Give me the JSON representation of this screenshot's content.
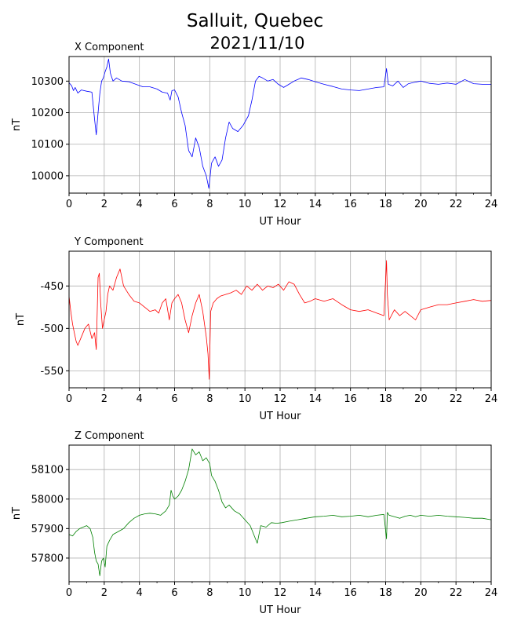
{
  "figure": {
    "title_line1": "Salluit, Quebec",
    "title_line2": "2021/11/10"
  },
  "chart_data": [
    {
      "type": "line",
      "title": "X Component",
      "xlabel": "UT Hour",
      "ylabel": "nT",
      "xlim": [
        0,
        24
      ],
      "ylim": [
        9945,
        10378
      ],
      "xticks": [
        0,
        2,
        4,
        6,
        8,
        10,
        12,
        14,
        16,
        18,
        20,
        22,
        24
      ],
      "yticks": [
        10000,
        10100,
        10200,
        10300
      ],
      "grid": true,
      "color": "#0000ff",
      "x": [
        0,
        0.15,
        0.25,
        0.35,
        0.5,
        0.7,
        1.0,
        1.3,
        1.45,
        1.55,
        1.65,
        1.75,
        1.85,
        1.95,
        2.05,
        2.15,
        2.25,
        2.35,
        2.5,
        2.7,
        3.0,
        3.4,
        3.8,
        4.2,
        4.6,
        5.0,
        5.3,
        5.6,
        5.75,
        5.85,
        6.0,
        6.2,
        6.4,
        6.6,
        6.8,
        7.0,
        7.2,
        7.4,
        7.6,
        7.8,
        7.95,
        8.1,
        8.3,
        8.5,
        8.7,
        8.9,
        9.1,
        9.3,
        9.6,
        9.9,
        10.2,
        10.4,
        10.6,
        10.8,
        11.0,
        11.3,
        11.6,
        11.9,
        12.2,
        12.5,
        12.8,
        13.2,
        13.6,
        14.0,
        14.5,
        15.0,
        15.5,
        16.0,
        16.5,
        17.0,
        17.5,
        17.9,
        18.05,
        18.15,
        18.4,
        18.7,
        19.0,
        19.3,
        19.6,
        20.0,
        20.5,
        21.0,
        21.5,
        22.0,
        22.5,
        23.0,
        23.5,
        24.0
      ],
      "y": [
        10295,
        10285,
        10270,
        10280,
        10262,
        10272,
        10268,
        10265,
        10180,
        10130,
        10200,
        10260,
        10300,
        10310,
        10330,
        10345,
        10370,
        10325,
        10300,
        10310,
        10300,
        10298,
        10290,
        10282,
        10282,
        10275,
        10265,
        10262,
        10240,
        10270,
        10272,
        10250,
        10200,
        10160,
        10080,
        10060,
        10120,
        10090,
        10030,
        10000,
        9960,
        10040,
        10060,
        10030,
        10050,
        10120,
        10170,
        10150,
        10140,
        10160,
        10190,
        10240,
        10300,
        10315,
        10310,
        10300,
        10305,
        10290,
        10280,
        10290,
        10300,
        10310,
        10305,
        10298,
        10290,
        10283,
        10275,
        10272,
        10270,
        10275,
        10280,
        10282,
        10340,
        10290,
        10285,
        10300,
        10280,
        10292,
        10296,
        10300,
        10293,
        10290,
        10294,
        10290,
        10305,
        10292,
        10290,
        10290
      ]
    },
    {
      "type": "line",
      "title": "Y Component",
      "xlabel": "UT Hour",
      "ylabel": "nT",
      "xlim": [
        0,
        24
      ],
      "ylim": [
        -570,
        -409
      ],
      "xticks": [
        0,
        2,
        4,
        6,
        8,
        10,
        12,
        14,
        16,
        18,
        20,
        22,
        24
      ],
      "yticks": [
        -550,
        -500,
        -450
      ],
      "grid": true,
      "color": "#ff0000",
      "x": [
        0,
        0.1,
        0.2,
        0.3,
        0.4,
        0.5,
        0.7,
        0.9,
        1.1,
        1.3,
        1.45,
        1.55,
        1.65,
        1.72,
        1.8,
        1.9,
        2.0,
        2.1,
        2.2,
        2.3,
        2.5,
        2.7,
        2.9,
        3.1,
        3.4,
        3.7,
        4.0,
        4.3,
        4.6,
        4.9,
        5.1,
        5.3,
        5.5,
        5.7,
        5.85,
        6.0,
        6.2,
        6.4,
        6.6,
        6.8,
        7.0,
        7.2,
        7.4,
        7.6,
        7.8,
        7.9,
        7.97,
        8.05,
        8.2,
        8.4,
        8.6,
        8.9,
        9.2,
        9.5,
        9.8,
        10.1,
        10.4,
        10.7,
        11.0,
        11.3,
        11.6,
        11.9,
        12.2,
        12.5,
        12.8,
        13.1,
        13.4,
        13.7,
        14.0,
        14.5,
        15.0,
        15.5,
        16.0,
        16.5,
        17.0,
        17.5,
        17.9,
        18.05,
        18.1,
        18.2,
        18.5,
        18.8,
        19.1,
        19.4,
        19.7,
        20.0,
        20.5,
        21.0,
        21.5,
        22.0,
        22.5,
        23.0,
        23.5,
        24.0
      ],
      "y": [
        -462,
        -480,
        -495,
        -505,
        -515,
        -520,
        -510,
        -500,
        -495,
        -512,
        -505,
        -525,
        -440,
        -435,
        -470,
        -500,
        -490,
        -480,
        -460,
        -450,
        -455,
        -440,
        -430,
        -450,
        -460,
        -468,
        -470,
        -475,
        -480,
        -478,
        -482,
        -470,
        -465,
        -490,
        -470,
        -465,
        -460,
        -470,
        -490,
        -505,
        -485,
        -470,
        -460,
        -480,
        -510,
        -530,
        -560,
        -480,
        -470,
        -465,
        -462,
        -460,
        -458,
        -455,
        -460,
        -450,
        -455,
        -448,
        -455,
        -450,
        -452,
        -448,
        -455,
        -445,
        -448,
        -460,
        -470,
        -468,
        -465,
        -468,
        -465,
        -472,
        -478,
        -480,
        -478,
        -482,
        -485,
        -420,
        -460,
        -490,
        -478,
        -485,
        -480,
        -485,
        -490,
        -478,
        -475,
        -472,
        -472,
        -470,
        -468,
        -466,
        -468,
        -467
      ]
    },
    {
      "type": "line",
      "title": "Z Component",
      "xlabel": "UT Hour",
      "ylabel": "nT",
      "xlim": [
        0,
        24
      ],
      "ylim": [
        57720,
        58183
      ],
      "xticks": [
        0,
        2,
        4,
        6,
        8,
        10,
        12,
        14,
        16,
        18,
        20,
        22,
        24
      ],
      "yticks": [
        57800,
        57900,
        58000,
        58100
      ],
      "grid": true,
      "color": "#008000",
      "x": [
        0,
        0.2,
        0.4,
        0.6,
        0.8,
        1.0,
        1.2,
        1.35,
        1.45,
        1.55,
        1.65,
        1.75,
        1.85,
        1.95,
        2.05,
        2.15,
        2.3,
        2.5,
        2.8,
        3.1,
        3.4,
        3.7,
        4.0,
        4.3,
        4.6,
        4.9,
        5.2,
        5.5,
        5.7,
        5.8,
        5.9,
        6.0,
        6.2,
        6.4,
        6.6,
        6.8,
        7.0,
        7.2,
        7.4,
        7.6,
        7.8,
        8.0,
        8.1,
        8.3,
        8.5,
        8.7,
        8.9,
        9.1,
        9.4,
        9.7,
        10.0,
        10.3,
        10.5,
        10.7,
        10.9,
        11.2,
        11.5,
        11.8,
        12.1,
        12.5,
        13.0,
        13.5,
        14.0,
        14.5,
        15.0,
        15.5,
        16.0,
        16.5,
        17.0,
        17.5,
        17.9,
        18.05,
        18.1,
        18.2,
        18.5,
        18.8,
        19.1,
        19.4,
        19.7,
        20.0,
        20.5,
        21.0,
        21.5,
        22.0,
        22.5,
        23.0,
        23.5,
        24.0
      ],
      "y": [
        57880,
        57875,
        57890,
        57900,
        57905,
        57910,
        57900,
        57870,
        57820,
        57790,
        57780,
        57740,
        57790,
        57800,
        57770,
        57840,
        57860,
        57880,
        57890,
        57900,
        57920,
        57935,
        57945,
        57950,
        57952,
        57950,
        57945,
        57960,
        57980,
        58030,
        58010,
        58000,
        58010,
        58030,
        58060,
        58100,
        58170,
        58150,
        58160,
        58130,
        58140,
        58120,
        58080,
        58060,
        58030,
        57990,
        57970,
        57980,
        57960,
        57950,
        57930,
        57910,
        57880,
        57850,
        57910,
        57905,
        57920,
        57918,
        57920,
        57925,
        57930,
        57935,
        57940,
        57942,
        57945,
        57940,
        57942,
        57945,
        57940,
        57945,
        57948,
        57865,
        57955,
        57945,
        57940,
        57935,
        57942,
        57945,
        57940,
        57945,
        57942,
        57945,
        57942,
        57940,
        57938,
        57935,
        57935,
        57930
      ]
    }
  ]
}
